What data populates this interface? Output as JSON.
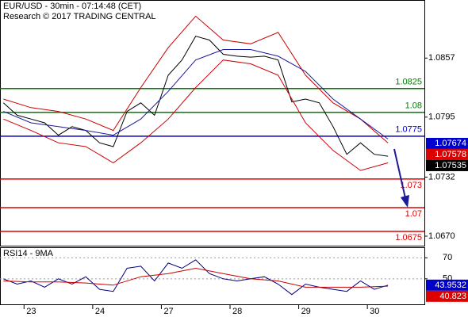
{
  "chart_data": {
    "type": "line",
    "title": "EUR/USD - 30min - 07:14:48 (CET)",
    "subtitle": "Research © 2017 TRADING CENTRAL",
    "xlim": [
      -0.35,
      5.83
    ],
    "xticks": [
      {
        "value": 0,
        "label": "23"
      },
      {
        "value": 1,
        "label": "24"
      },
      {
        "value": 2,
        "label": "27"
      },
      {
        "value": 3,
        "label": "28"
      },
      {
        "value": 4,
        "label": "29"
      },
      {
        "value": 5,
        "label": "30"
      }
    ],
    "ylim": [
      1.066,
      1.0918
    ],
    "yticks": [
      1.0857,
      1.0795,
      1.0732,
      {
        "value": 1.067,
        "label": "1.0670"
      }
    ],
    "series": [
      {
        "color": "#000000",
        "x": [
          -0.3,
          -0.1,
          0.1,
          0.3,
          0.5,
          0.7,
          0.9,
          1.1,
          1.3,
          1.5,
          1.7,
          1.9,
          2.1,
          2.3,
          2.5,
          2.7,
          2.9,
          3.1,
          3.3,
          3.5,
          3.7,
          3.9,
          4.1,
          4.3,
          4.5,
          4.7,
          4.9,
          5.1,
          5.3
        ],
        "values": [
          1.081,
          1.0797,
          1.0793,
          1.0789,
          1.0776,
          1.0785,
          1.0781,
          1.0768,
          1.0764,
          1.0801,
          1.081,
          1.0797,
          1.0839,
          1.0855,
          1.088,
          1.0876,
          1.0861,
          1.0859,
          1.0858,
          1.0859,
          1.0855,
          1.0811,
          1.0814,
          1.081,
          1.0785,
          1.0756,
          1.0768,
          1.0756,
          1.0754
        ]
      },
      {
        "color": "#cc0000",
        "x": [
          -0.3,
          0.1,
          0.5,
          0.9,
          1.3,
          1.7,
          2.1,
          2.5,
          2.9,
          3.3,
          3.7,
          4.1,
          4.5,
          4.9,
          5.3
        ],
        "values": [
          1.0814,
          1.0805,
          1.0801,
          1.0793,
          1.0781,
          1.0826,
          1.0868,
          1.0901,
          1.0876,
          1.0872,
          1.0884,
          1.0839,
          1.081,
          1.0793,
          1.0768
        ]
      },
      {
        "color": "#cc0000",
        "x": [
          -0.3,
          0.1,
          0.5,
          0.9,
          1.3,
          1.7,
          2.1,
          2.5,
          2.9,
          3.3,
          3.7,
          4.1,
          4.5,
          4.9,
          5.3
        ],
        "values": [
          1.0793,
          1.0781,
          1.0768,
          1.0764,
          1.0747,
          1.0768,
          1.0793,
          1.0826,
          1.0855,
          1.0851,
          1.0839,
          1.0789,
          1.076,
          1.0739,
          1.0747
        ]
      },
      {
        "color": "#1a1a9e",
        "x": [
          -0.3,
          0.1,
          0.5,
          0.9,
          1.3,
          1.7,
          2.1,
          2.5,
          2.9,
          3.3,
          3.7,
          4.1,
          4.5,
          4.9,
          5.3
        ],
        "values": [
          1.0801,
          1.0789,
          1.0785,
          1.0781,
          1.0776,
          1.0793,
          1.0822,
          1.0855,
          1.0866,
          1.0866,
          1.0859,
          1.0843,
          1.0814,
          1.0793,
          1.0772
        ]
      }
    ],
    "levels": [
      {
        "value": 1.0825,
        "color": "#008000"
      },
      {
        "value": 1.08,
        "color": "#008000"
      },
      {
        "value": 1.0775,
        "color": "#0000cc"
      },
      {
        "value": 1.073,
        "color": "#dd0000"
      },
      {
        "value": 1.07,
        "color": "#dd0000"
      },
      {
        "value": 1.0675,
        "color": "#dd0000"
      }
    ],
    "last_values": [
      {
        "value": 1.07674,
        "color": "#0000cc"
      },
      {
        "value": 1.07578,
        "color": "#dd0000"
      },
      {
        "value": 1.07535,
        "color": "#000000"
      }
    ],
    "rsi": {
      "title": "RSI14 - 9MA",
      "ylim": [
        25,
        80
      ],
      "yticks": [
        70,
        50
      ],
      "series": [
        {
          "color": "#000080",
          "x": [
            -0.3,
            -0.1,
            0.1,
            0.3,
            0.5,
            0.7,
            0.9,
            1.1,
            1.3,
            1.5,
            1.7,
            1.9,
            2.1,
            2.3,
            2.5,
            2.7,
            2.9,
            3.1,
            3.3,
            3.5,
            3.7,
            3.9,
            4.1,
            4.3,
            4.5,
            4.7,
            4.9,
            5.1,
            5.3
          ],
          "values": [
            50,
            45,
            48,
            42,
            50,
            45,
            52,
            40,
            38,
            60,
            62,
            48,
            65,
            60,
            68,
            55,
            50,
            48,
            50,
            52,
            45,
            35,
            45,
            42,
            40,
            38,
            48,
            40,
            44
          ]
        },
        {
          "color": "#cc0000",
          "x": [
            -0.3,
            0.1,
            0.5,
            0.9,
            1.3,
            1.7,
            2.1,
            2.5,
            2.9,
            3.3,
            3.7,
            4.1,
            4.5,
            4.9,
            5.3
          ],
          "values": [
            48,
            47,
            47,
            46,
            44,
            52,
            55,
            60,
            55,
            50,
            48,
            42,
            42,
            42,
            43
          ]
        }
      ],
      "last_values": [
        {
          "value": 43.9532,
          "color": "#0000cc"
        },
        {
          "value": 40.823,
          "color": "#dd0000"
        }
      ]
    }
  }
}
